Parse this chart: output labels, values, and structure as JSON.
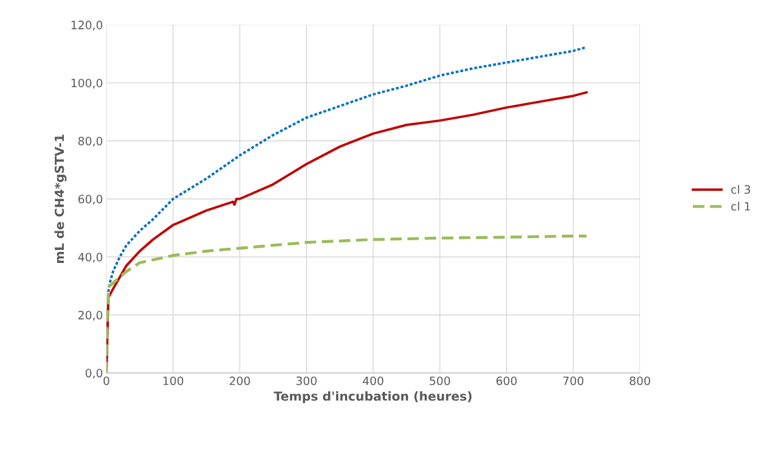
{
  "chart_data": {
    "type": "line",
    "xlabel": "Temps d'incubation (heures)",
    "ylabel": "mL de CH4*gSTV-1",
    "xlim": [
      0,
      800
    ],
    "xticks": [
      0,
      100,
      200,
      300,
      400,
      500,
      600,
      700,
      800
    ],
    "ylim": [
      0,
      120
    ],
    "yticks": [
      {
        "value": 0,
        "label": "0,0"
      },
      {
        "value": 20,
        "label": "20,0"
      },
      {
        "value": 40,
        "label": "40,0"
      },
      {
        "value": 60,
        "label": "60,0"
      },
      {
        "value": 80,
        "label": "80,0"
      },
      {
        "value": 100,
        "label": "100,0"
      },
      {
        "value": 120,
        "label": "120,0"
      }
    ],
    "grid": true,
    "legend": "right",
    "marker": "none",
    "series": [
      {
        "color": "#0070c0",
        "line_style": "dotted",
        "x": [
          0,
          3,
          5,
          10,
          20,
          30,
          50,
          70,
          100,
          150,
          200,
          250,
          300,
          350,
          400,
          450,
          500,
          550,
          600,
          650,
          700,
          720
        ],
        "values": [
          0,
          28,
          31,
          35,
          40,
          44,
          49,
          53,
          60,
          67,
          75,
          82,
          88,
          92,
          96,
          99,
          102.5,
          105,
          107,
          109,
          111,
          112.3
        ]
      },
      {
        "name": "cl 3",
        "color": "#c00000",
        "line_style": "solid",
        "x": [
          0,
          3,
          10,
          20,
          30,
          50,
          70,
          100,
          150,
          190,
          192,
          195,
          200,
          250,
          300,
          350,
          400,
          450,
          500,
          550,
          600,
          650,
          700,
          720
        ],
        "values": [
          0,
          26,
          29,
          33,
          37,
          42,
          46,
          51,
          56,
          59,
          58,
          60,
          60,
          65,
          72,
          78,
          82.5,
          85.5,
          87,
          89,
          91.5,
          93.5,
          95.5,
          96.7
        ]
      },
      {
        "name": "cl 1",
        "color": "#9bbb59",
        "line_style": "dashed",
        "x": [
          0,
          1,
          3,
          5,
          10,
          20,
          30,
          50,
          100,
          150,
          200,
          300,
          400,
          500,
          600,
          700,
          720
        ],
        "values": [
          0,
          15,
          27,
          30,
          31,
          33,
          35,
          38,
          40.5,
          42,
          43,
          45,
          46,
          46.5,
          46.8,
          47.2,
          47.2
        ]
      }
    ]
  }
}
